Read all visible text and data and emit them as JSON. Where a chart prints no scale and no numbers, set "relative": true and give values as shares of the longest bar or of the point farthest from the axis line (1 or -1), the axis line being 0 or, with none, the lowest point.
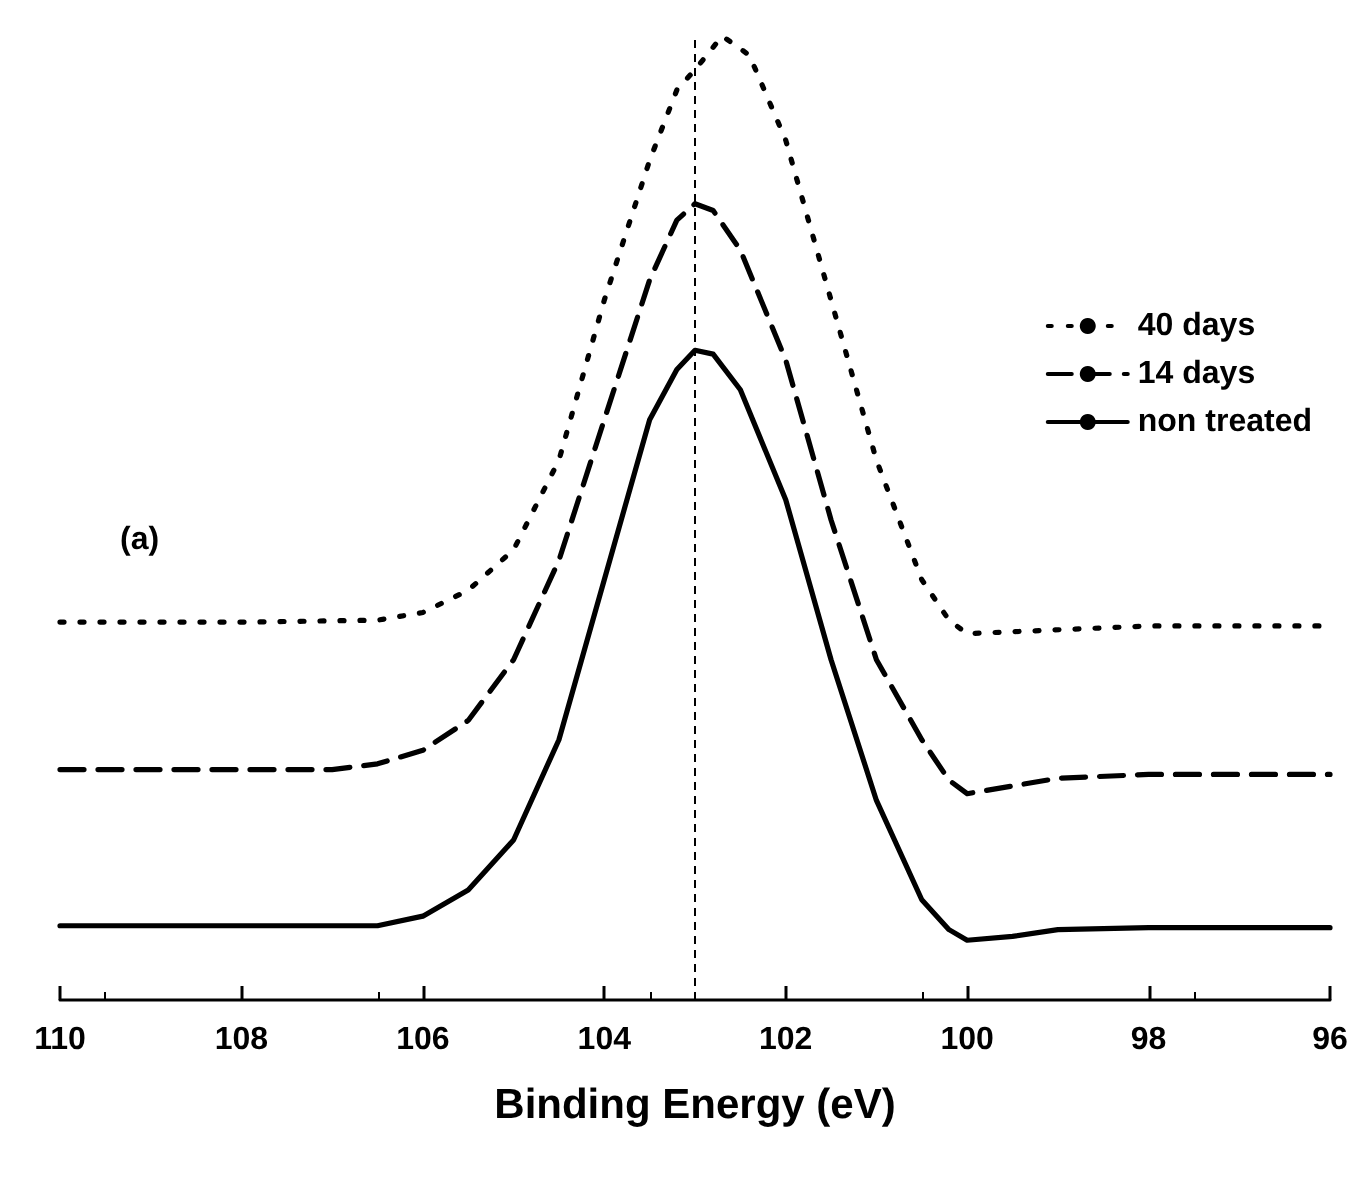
{
  "chart_data": {
    "type": "line",
    "relative": true,
    "xlabel": "Binding Energy (eV)",
    "xlim": [
      110,
      96
    ],
    "xticks": [
      110,
      108,
      106,
      104,
      102,
      100,
      98,
      96
    ],
    "grid": false,
    "legend": "right",
    "marker": "none",
    "tick_labels": "x",
    "annotations": [
      "(a)"
    ],
    "ref_lines": [
      {
        "axis": "x",
        "value": 103,
        "color": "#000000",
        "line_style": "dashed"
      }
    ],
    "series": [
      {
        "name": "40 days",
        "color": "#000000",
        "line_style": "dotted",
        "x": [
          110,
          108,
          106.5,
          106,
          105.5,
          105,
          104.5,
          104,
          103.5,
          103.2,
          103,
          102.7,
          102.4,
          102,
          101.5,
          101,
          100.5,
          100.2,
          100,
          99.5,
          98,
          96
        ],
        "values": [
          0.392,
          0.392,
          0.394,
          0.402,
          0.425,
          0.467,
          0.56,
          0.726,
          0.871,
          0.944,
          0.965,
          1,
          0.98,
          0.892,
          0.726,
          0.56,
          0.436,
          0.394,
          0.38,
          0.382,
          0.388,
          0.388
        ]
      },
      {
        "name": "14 days",
        "color": "#000000",
        "line_style": "dashed",
        "x": [
          110,
          107,
          106.5,
          106,
          105.5,
          105,
          104.5,
          104,
          103.5,
          103.2,
          103,
          102.8,
          102.5,
          102,
          101.5,
          101,
          100.5,
          100.2,
          100,
          99.5,
          99,
          98,
          96
        ],
        "values": [
          0.239,
          0.239,
          0.245,
          0.259,
          0.29,
          0.353,
          0.456,
          0.602,
          0.747,
          0.809,
          0.826,
          0.819,
          0.778,
          0.664,
          0.498,
          0.353,
          0.27,
          0.228,
          0.214,
          0.222,
          0.23,
          0.234,
          0.234
        ]
      },
      {
        "name": "non treated",
        "color": "#000000",
        "line_style": "solid",
        "x": [
          110,
          106.5,
          106,
          105.5,
          105,
          104.5,
          104,
          103.5,
          103.2,
          103,
          102.8,
          102.5,
          102,
          101.5,
          101,
          100.5,
          100.2,
          100,
          99.5,
          99,
          98,
          96
        ],
        "values": [
          0.077,
          0.077,
          0.087,
          0.114,
          0.166,
          0.27,
          0.436,
          0.602,
          0.654,
          0.674,
          0.67,
          0.633,
          0.519,
          0.353,
          0.207,
          0.104,
          0.073,
          0.062,
          0.066,
          0.073,
          0.075,
          0.075
        ]
      }
    ]
  }
}
